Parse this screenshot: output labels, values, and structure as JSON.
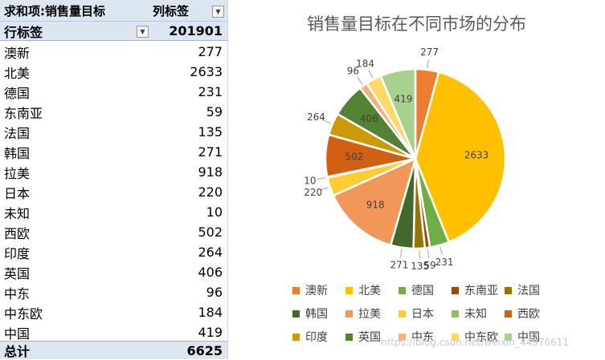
{
  "pivot": {
    "header_sum_label": "求和项:销售量目标",
    "header_col_label": "列标签",
    "row_label": "行标签",
    "col_value": "201901",
    "rows": [
      {
        "name": "澳新",
        "value": "277"
      },
      {
        "name": "北美",
        "value": "2633"
      },
      {
        "name": "德国",
        "value": "231"
      },
      {
        "name": "东南亚",
        "value": "59"
      },
      {
        "name": "法国",
        "value": "135"
      },
      {
        "name": "韩国",
        "value": "271"
      },
      {
        "name": "拉美",
        "value": "918"
      },
      {
        "name": "日本",
        "value": "220"
      },
      {
        "name": "未知",
        "value": "10"
      },
      {
        "name": "西欧",
        "value": "502"
      },
      {
        "name": "印度",
        "value": "264"
      },
      {
        "name": "英国",
        "value": "406"
      },
      {
        "name": "中东",
        "value": "96"
      },
      {
        "name": "中东欧",
        "value": "184"
      },
      {
        "name": "中国",
        "value": "419"
      }
    ],
    "total_label": "总计",
    "total_value": "6625"
  },
  "chart_data": {
    "type": "pie",
    "title": "销售量目标在不同市场的分布",
    "categories": [
      "澳新",
      "北美",
      "德国",
      "东南亚",
      "法国",
      "韩国",
      "拉美",
      "日本",
      "未知",
      "西欧",
      "印度",
      "英国",
      "中东",
      "中东欧",
      "中国"
    ],
    "values": [
      277,
      2633,
      231,
      59,
      135,
      271,
      918,
      220,
      10,
      502,
      264,
      406,
      96,
      184,
      419
    ],
    "colors": [
      "#ED7D31",
      "#FFC000",
      "#70AD47",
      "#9E480E",
      "#997300",
      "#43682B",
      "#F1975A",
      "#FFCD33",
      "#8CC168",
      "#D26012",
      "#CC9A06",
      "#548235",
      "#F4B183",
      "#FFD966",
      "#A9D18E"
    ],
    "legend_position": "bottom"
  },
  "watermark": "https://blog.csdn.net/weixin_44976611"
}
